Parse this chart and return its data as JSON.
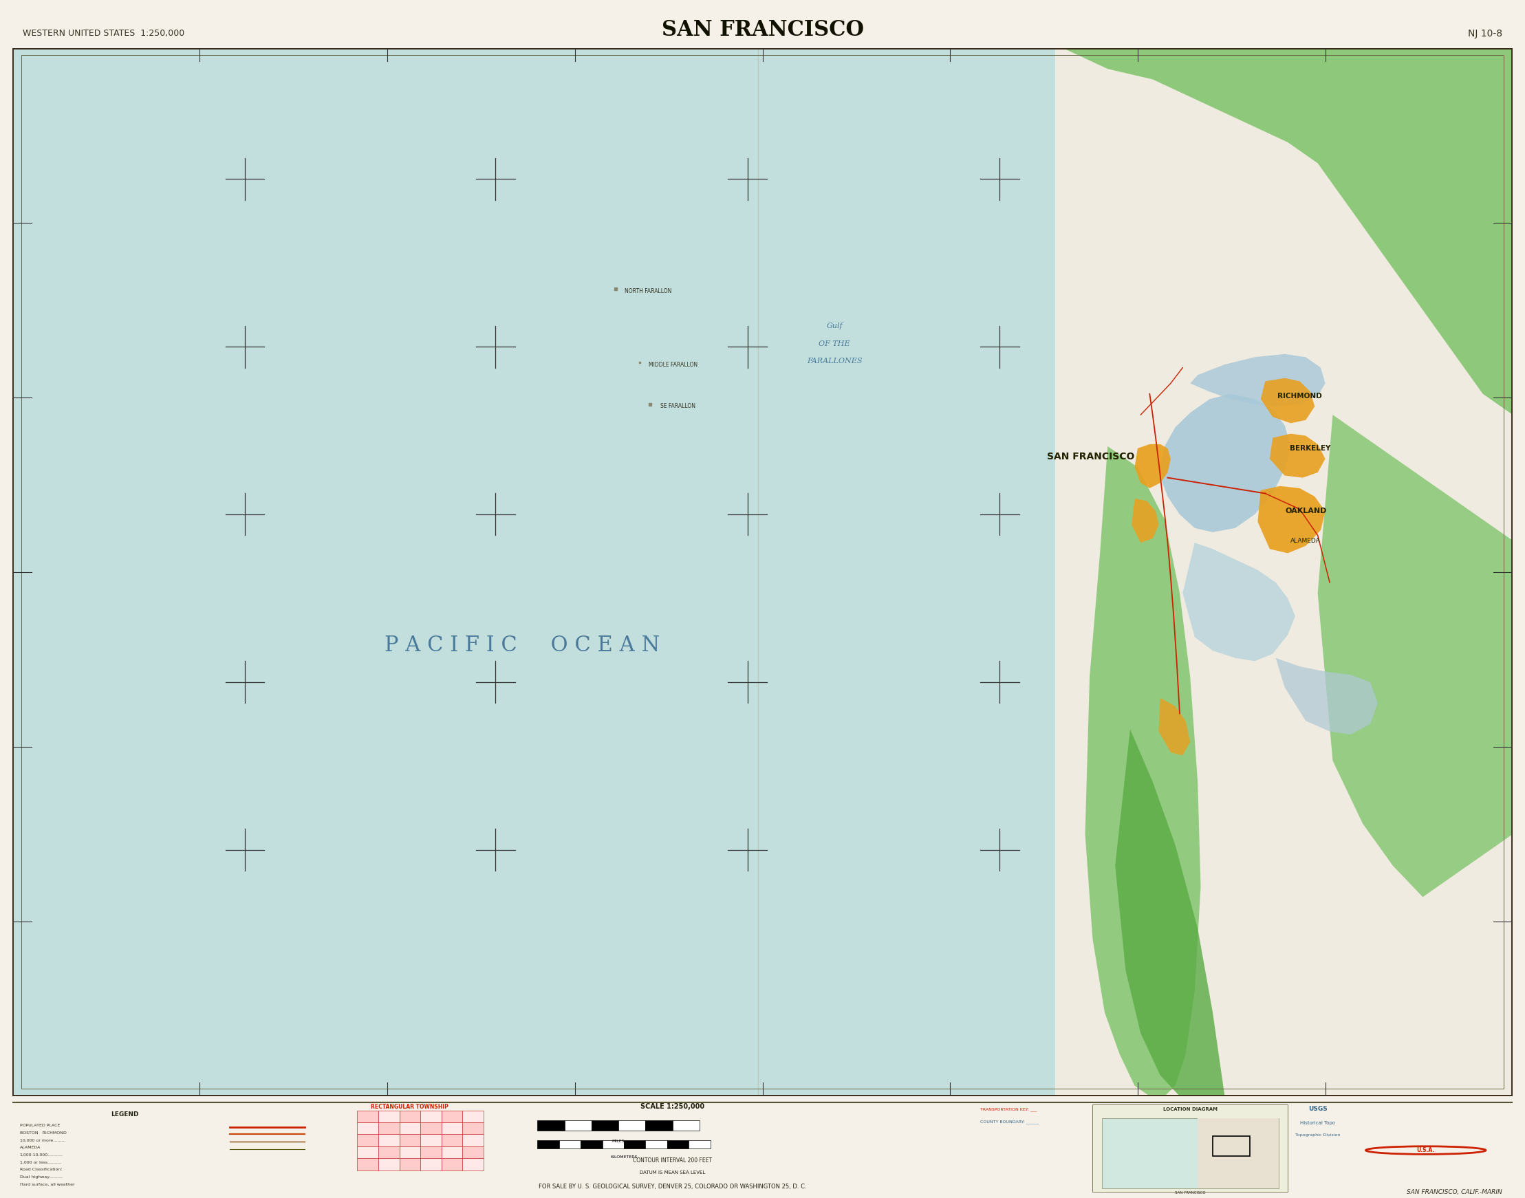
{
  "title": "SAN FRANCISCO",
  "title_left": "WESTERN UNITED STATES  1:250,000",
  "title_right": "NJ 10-8",
  "footer_sale": "FOR SALE BY U. S. GEOLOGICAL SURVEY, DENVER 25, COLORADO OR WASHINGTON 25, D. C.",
  "footer_name": "SAN FRANCISCO, CALIF.-MARIN",
  "bg_color": "#f5f0e8",
  "ocean_color": "#c2dedd",
  "land_base": "#f0ebe0",
  "land_green": "#7dc46a",
  "land_green2": "#5aab44",
  "urban_orange": "#e8a020",
  "water_blue": "#a8c8d8",
  "water_blue2": "#b8d4dc",
  "road_red": "#cc2200",
  "map_border": "#3a2a1a",
  "cross_color": "#333333",
  "tick_color": "#333333",
  "pacific_ocean_text": "P A C I F I C     O C E A N",
  "gulf_line1": "Gulf",
  "gulf_line2": "OF THE",
  "gulf_line3": "FARALLONES",
  "san_francisco_label": "SAN FRANCISCO",
  "north_farallon": "NORTH FARALLON",
  "middle_farallon": "MIDDLE FARALLON",
  "se_farallon": "SE FARALLON",
  "richmond_label": "RICHMOND",
  "berkeley_label": "BERKELEY",
  "oakland_label": "OAKLAND",
  "alameda_label": "ALAMEDA",
  "water_text_color": "#4a7a9a",
  "label_dark": "#222200"
}
